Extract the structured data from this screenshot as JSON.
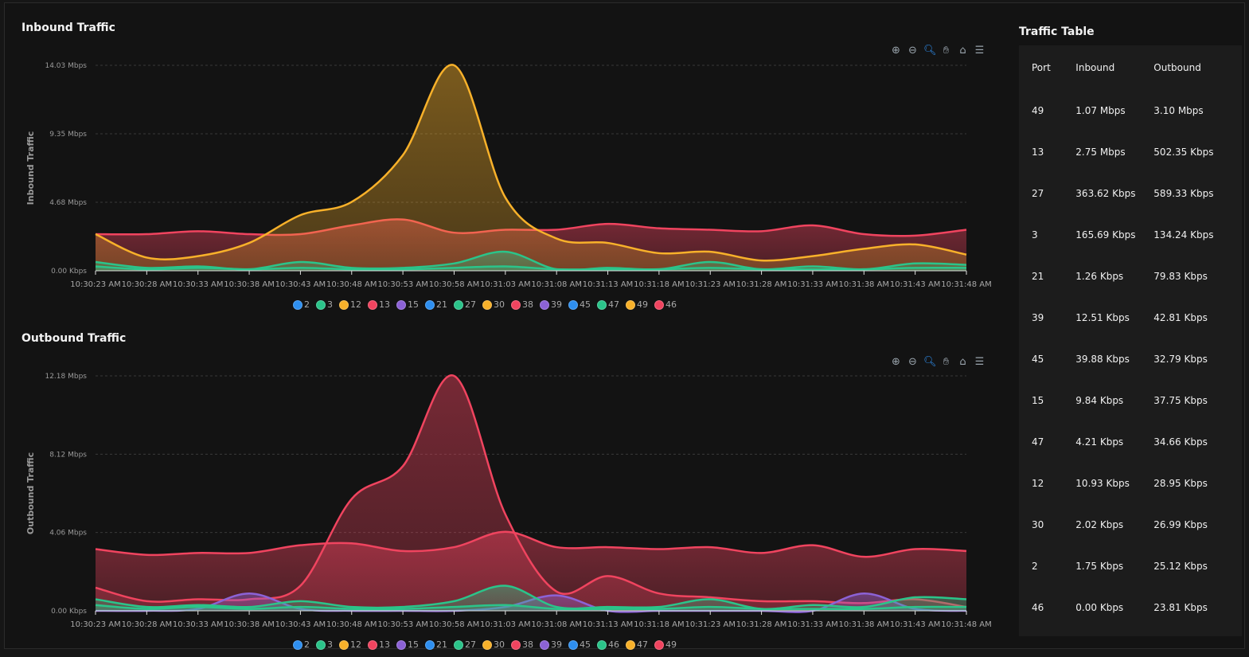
{
  "table": {
    "title": "Traffic Table",
    "headers": [
      "Port",
      "Inbound",
      "Outbound"
    ],
    "rows": [
      [
        "49",
        "1.07 Mbps",
        "3.10 Mbps"
      ],
      [
        "13",
        "2.75 Mbps",
        "502.35 Kbps"
      ],
      [
        "27",
        "363.62 Kbps",
        "589.33 Kbps"
      ],
      [
        "3",
        "165.69 Kbps",
        "134.24 Kbps"
      ],
      [
        "21",
        "1.26 Kbps",
        "79.83 Kbps"
      ],
      [
        "39",
        "12.51 Kbps",
        "42.81 Kbps"
      ],
      [
        "45",
        "39.88 Kbps",
        "32.79 Kbps"
      ],
      [
        "15",
        "9.84 Kbps",
        "37.75 Kbps"
      ],
      [
        "47",
        "4.21 Kbps",
        "34.66 Kbps"
      ],
      [
        "12",
        "10.93 Kbps",
        "28.95 Kbps"
      ],
      [
        "30",
        "2.02 Kbps",
        "26.99 Kbps"
      ],
      [
        "2",
        "1.75 Kbps",
        "25.12 Kbps"
      ],
      [
        "46",
        "0.00 Kbps",
        "23.81 Kbps"
      ]
    ]
  },
  "colors": {
    "blue": "#2e8ff0",
    "green": "#2bc48a",
    "yellow": "#f8b12a",
    "red": "#f0445f",
    "purple": "#8c62d6"
  },
  "toolbar_icons": [
    "zoom-in-icon",
    "zoom-out-icon",
    "zoom-selection-icon",
    "pan-hand-icon",
    "home-icon",
    "menu-icon"
  ],
  "chart_data": [
    {
      "type": "area",
      "title": "Inbound Traffic",
      "ylabel": "Inbound Traffic",
      "yticks": [
        "0.00 Kbps",
        "4.68 Mbps",
        "9.35 Mbps",
        "14.03 Mbps"
      ],
      "ylim": [
        0,
        14.03
      ],
      "x": [
        "10:30:23 AM",
        "10:30:28 AM",
        "10:30:33 AM",
        "10:30:38 AM",
        "10:30:43 AM",
        "10:30:48 AM",
        "10:30:53 AM",
        "10:30:58 AM",
        "10:31:03 AM",
        "10:31:08 AM",
        "10:31:13 AM",
        "10:31:18 AM",
        "10:31:23 AM",
        "10:31:28 AM",
        "10:31:33 AM",
        "10:31:38 AM",
        "10:31:43 AM",
        "10:31:48 AM"
      ],
      "legend": [
        {
          "name": "2",
          "color": "#2e8ff0"
        },
        {
          "name": "3",
          "color": "#2bc48a"
        },
        {
          "name": "12",
          "color": "#f8b12a"
        },
        {
          "name": "13",
          "color": "#f0445f"
        },
        {
          "name": "15",
          "color": "#8c62d6"
        },
        {
          "name": "21",
          "color": "#2e8ff0"
        },
        {
          "name": "27",
          "color": "#2bc48a"
        },
        {
          "name": "30",
          "color": "#f8b12a"
        },
        {
          "name": "38",
          "color": "#f0445f"
        },
        {
          "name": "39",
          "color": "#8c62d6"
        },
        {
          "name": "45",
          "color": "#2e8ff0"
        },
        {
          "name": "47",
          "color": "#2bc48a"
        },
        {
          "name": "49",
          "color": "#f8b12a"
        },
        {
          "name": "46",
          "color": "#f0445f"
        }
      ],
      "series": [
        {
          "name": "13",
          "color": "#f0445f",
          "values": [
            2.5,
            2.5,
            2.7,
            2.5,
            2.5,
            3.1,
            3.5,
            2.6,
            2.8,
            2.8,
            3.2,
            2.9,
            2.8,
            2.7,
            3.1,
            2.5,
            2.4,
            2.8
          ]
        },
        {
          "name": "49",
          "color": "#f8b12a",
          "values": [
            2.5,
            0.9,
            1.0,
            1.9,
            3.8,
            4.7,
            7.9,
            14.03,
            5.0,
            2.2,
            1.9,
            1.2,
            1.3,
            0.7,
            1.0,
            1.5,
            1.8,
            1.1
          ]
        },
        {
          "name": "27",
          "color": "#2bc48a",
          "values": [
            0.6,
            0.2,
            0.3,
            0.1,
            0.6,
            0.2,
            0.2,
            0.5,
            1.3,
            0.1,
            0.2,
            0.1,
            0.6,
            0.1,
            0.3,
            0.1,
            0.5,
            0.4
          ]
        },
        {
          "name": "3",
          "color": "#2bc48a",
          "values": [
            0.3,
            0.1,
            0.2,
            0.1,
            0.2,
            0.1,
            0.1,
            0.2,
            0.3,
            0.1,
            0.1,
            0.1,
            0.2,
            0.1,
            0.1,
            0.1,
            0.2,
            0.2
          ]
        }
      ]
    },
    {
      "type": "area",
      "title": "Outbound Traffic",
      "ylabel": "Outbound Traffic",
      "yticks": [
        "0.00 Kbps",
        "4.06 Mbps",
        "8.12 Mbps",
        "12.18 Mbps"
      ],
      "ylim": [
        0,
        12.18
      ],
      "x": [
        "10:30:23 AM",
        "10:30:28 AM",
        "10:30:33 AM",
        "10:30:38 AM",
        "10:30:43 AM",
        "10:30:48 AM",
        "10:30:53 AM",
        "10:30:58 AM",
        "10:31:03 AM",
        "10:31:08 AM",
        "10:31:13 AM",
        "10:31:18 AM",
        "10:31:23 AM",
        "10:31:28 AM",
        "10:31:33 AM",
        "10:31:38 AM",
        "10:31:43 AM",
        "10:31:48 AM"
      ],
      "legend": [
        {
          "name": "2",
          "color": "#2e8ff0"
        },
        {
          "name": "3",
          "color": "#2bc48a"
        },
        {
          "name": "12",
          "color": "#f8b12a"
        },
        {
          "name": "13",
          "color": "#f0445f"
        },
        {
          "name": "15",
          "color": "#8c62d6"
        },
        {
          "name": "21",
          "color": "#2e8ff0"
        },
        {
          "name": "27",
          "color": "#2bc48a"
        },
        {
          "name": "30",
          "color": "#f8b12a"
        },
        {
          "name": "38",
          "color": "#f0445f"
        },
        {
          "name": "39",
          "color": "#8c62d6"
        },
        {
          "name": "45",
          "color": "#2e8ff0"
        },
        {
          "name": "46",
          "color": "#2bc48a"
        },
        {
          "name": "47",
          "color": "#f8b12a"
        },
        {
          "name": "49",
          "color": "#f0445f"
        }
      ],
      "series": [
        {
          "name": "13",
          "color": "#f0445f",
          "values": [
            3.2,
            2.9,
            3.0,
            3.0,
            3.4,
            3.5,
            3.1,
            3.3,
            4.1,
            3.3,
            3.3,
            3.2,
            3.3,
            3.0,
            3.4,
            2.8,
            3.2,
            3.1
          ]
        },
        {
          "name": "49",
          "color": "#f0445f",
          "values": [
            1.2,
            0.5,
            0.6,
            0.6,
            1.3,
            5.8,
            7.5,
            12.18,
            5.0,
            1.0,
            1.8,
            0.9,
            0.7,
            0.5,
            0.5,
            0.4,
            0.6,
            0.2
          ]
        },
        {
          "name": "39",
          "color": "#8c62d6",
          "values": [
            0.0,
            0.0,
            0.1,
            0.9,
            0.1,
            0.0,
            0.0,
            0.0,
            0.2,
            0.8,
            0.0,
            0.0,
            0.0,
            0.0,
            0.0,
            0.9,
            0.1,
            0.0
          ]
        },
        {
          "name": "27",
          "color": "#2bc48a",
          "values": [
            0.6,
            0.2,
            0.3,
            0.2,
            0.5,
            0.2,
            0.2,
            0.5,
            1.3,
            0.2,
            0.2,
            0.2,
            0.6,
            0.1,
            0.3,
            0.2,
            0.7,
            0.6
          ]
        },
        {
          "name": "3",
          "color": "#2bc48a",
          "values": [
            0.3,
            0.1,
            0.2,
            0.1,
            0.2,
            0.1,
            0.1,
            0.2,
            0.3,
            0.1,
            0.1,
            0.1,
            0.2,
            0.1,
            0.1,
            0.1,
            0.2,
            0.2
          ]
        }
      ]
    }
  ]
}
